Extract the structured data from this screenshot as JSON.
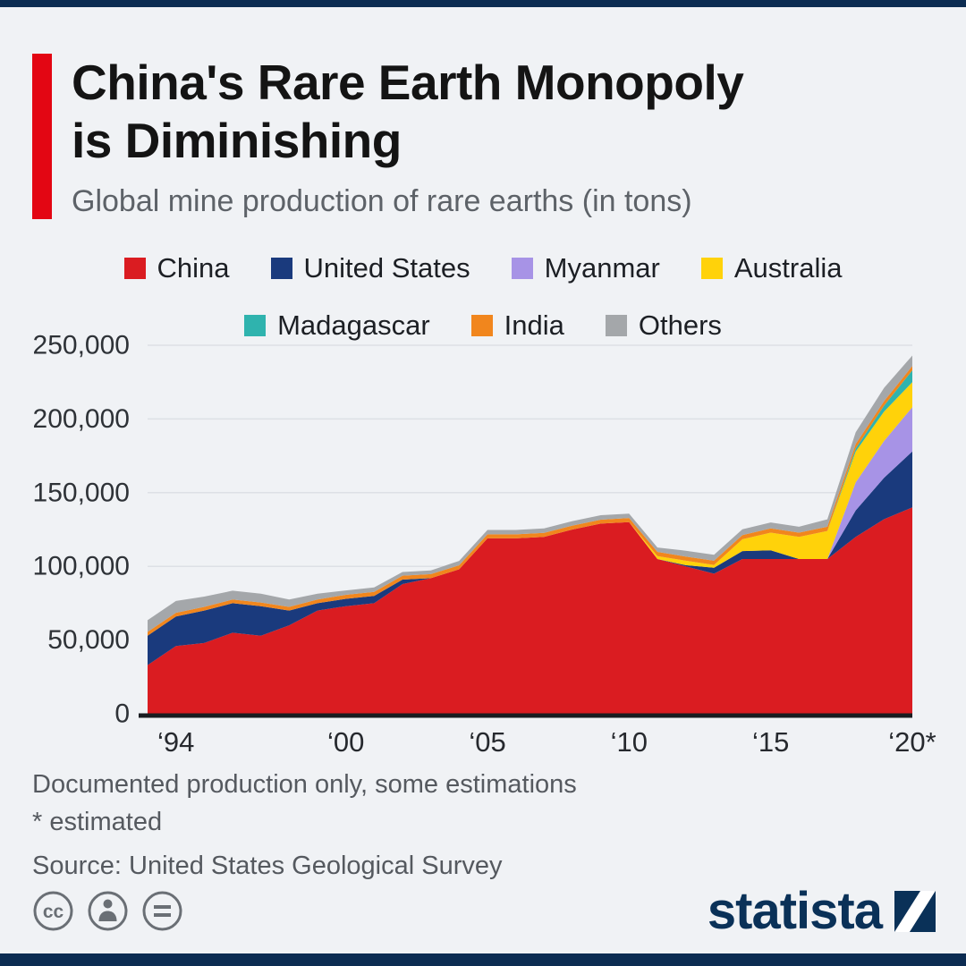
{
  "page": {
    "background": "#f0f2f5",
    "accent_color": "#e30613",
    "bar_color": "#0c2c52"
  },
  "header": {
    "title_line1": "China's Rare Earth Monopoly",
    "title_line2": "is Diminishing",
    "subtitle": "Global mine production of rare earths (in tons)"
  },
  "chart_data": {
    "type": "area",
    "stacked": true,
    "title": "Global mine production of rare earths (in tons)",
    "x": [
      1993,
      1994,
      1995,
      1996,
      1997,
      1998,
      1999,
      2000,
      2001,
      2002,
      2003,
      2004,
      2005,
      2006,
      2007,
      2008,
      2009,
      2010,
      2011,
      2012,
      2013,
      2014,
      2015,
      2016,
      2017,
      2018,
      2019,
      2020
    ],
    "series": [
      {
        "name": "China",
        "color": "#da1c21",
        "values": [
          33000,
          46000,
          48000,
          55000,
          53000,
          60000,
          70000,
          73000,
          75000,
          88000,
          92000,
          98000,
          119000,
          119000,
          120000,
          125000,
          129000,
          130000,
          105000,
          100000,
          95000,
          105000,
          105000,
          105000,
          105000,
          120000,
          132000,
          140000
        ]
      },
      {
        "name": "United States",
        "color": "#1a3a7d",
        "values": [
          20000,
          20000,
          22000,
          20000,
          20000,
          10000,
          5000,
          5000,
          5000,
          3000,
          0,
          0,
          0,
          0,
          0,
          0,
          0,
          0,
          0,
          800,
          4000,
          5400,
          5900,
          0,
          0,
          18000,
          28000,
          38000
        ]
      },
      {
        "name": "Myanmar",
        "color": "#a793e6",
        "values": [
          0,
          0,
          0,
          0,
          0,
          0,
          0,
          0,
          0,
          0,
          0,
          0,
          0,
          0,
          0,
          0,
          0,
          0,
          0,
          0,
          0,
          0,
          0,
          0,
          0,
          19000,
          25000,
          30000
        ]
      },
      {
        "name": "Australia",
        "color": "#ffd20a",
        "values": [
          0,
          0,
          0,
          0,
          0,
          0,
          0,
          0,
          0,
          0,
          0,
          0,
          0,
          0,
          0,
          0,
          0,
          0,
          2000,
          3000,
          2000,
          8000,
          12000,
          15000,
          19000,
          21000,
          20000,
          17000
        ]
      },
      {
        "name": "Madagascar",
        "color": "#2fb3ae",
        "values": [
          0,
          0,
          0,
          0,
          0,
          0,
          0,
          0,
          0,
          0,
          0,
          0,
          0,
          0,
          0,
          0,
          0,
          0,
          0,
          0,
          0,
          0,
          0,
          0,
          0,
          2000,
          4000,
          8000
        ]
      },
      {
        "name": "India",
        "color": "#f1861d",
        "values": [
          2500,
          2500,
          2500,
          2500,
          2500,
          2500,
          2500,
          2700,
          2700,
          2700,
          2700,
          2700,
          2700,
          2700,
          2700,
          2700,
          2700,
          2800,
          2800,
          2800,
          2800,
          2800,
          2900,
          2900,
          2900,
          3000,
          3000,
          3000
        ]
      },
      {
        "name": "Others",
        "color": "#a4a7aa",
        "values": [
          8000,
          8000,
          7000,
          6000,
          6000,
          5000,
          4000,
          3000,
          3000,
          2500,
          2500,
          3000,
          3000,
          3000,
          3000,
          3000,
          3000,
          3000,
          3000,
          4000,
          4000,
          4000,
          4000,
          4000,
          5000,
          8000,
          9000,
          7000
        ]
      }
    ],
    "ylim": [
      0,
      250000
    ],
    "yticks": [
      0,
      50000,
      100000,
      150000,
      200000,
      250000
    ],
    "ytick_labels": [
      "0",
      "50,000",
      "100,000",
      "150,000",
      "200,000",
      "250,000"
    ],
    "xticks": [
      1994,
      2000,
      2005,
      2010,
      2015,
      2020
    ],
    "xtick_labels": [
      "‘94",
      "‘00",
      "‘05",
      "‘10",
      "‘15",
      "‘20*"
    ],
    "grid": true,
    "legend_position": "top"
  },
  "footer": {
    "note1": "Documented production only, some estimations",
    "note2": "* estimated",
    "source": "Source: United States Geological Survey",
    "logo_text": "statista"
  }
}
